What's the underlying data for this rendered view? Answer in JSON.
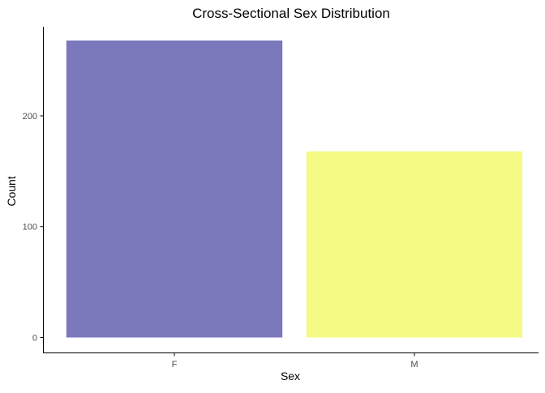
{
  "chart_data": {
    "type": "bar",
    "title": "Cross-Sectional Sex Distribution",
    "xlabel": "Sex",
    "ylabel": "Count",
    "categories": [
      "F",
      "M"
    ],
    "values": [
      268,
      168
    ],
    "ylim": [
      0,
      268
    ],
    "yticks": [
      0,
      100,
      200
    ],
    "bar_colors": [
      "#7b78bc",
      "#f5fa84"
    ],
    "grid": false,
    "legend": "none"
  }
}
